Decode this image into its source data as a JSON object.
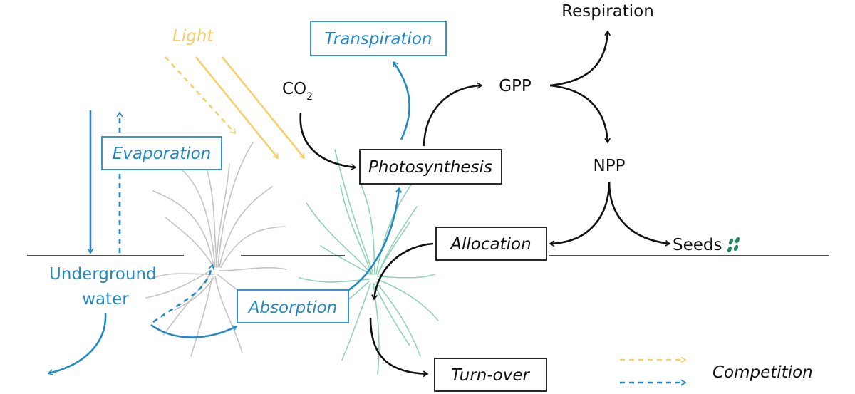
{
  "labels": {
    "light": "Light",
    "transpiration": "Transpiration",
    "respiration": "Respiration",
    "co2_main": "CO",
    "co2_sub": "2",
    "gpp": "GPP",
    "evaporation": "Evaporation",
    "photosynthesis": "Photosynthesis",
    "npp": "NPP",
    "allocation": "Allocation",
    "seeds": "Seeds",
    "underground_line1": "Underground",
    "underground_line2": "water",
    "absorption": "Absorption",
    "turnover": "Turn-over",
    "competition": "Competition"
  },
  "colors": {
    "water": "#2389c4",
    "light": "#f7cf6e",
    "carbon": "#111111",
    "plant_grey": "#c4c4c4",
    "plant_green": "#8fd4b3",
    "seed": "#1f8a5b"
  }
}
